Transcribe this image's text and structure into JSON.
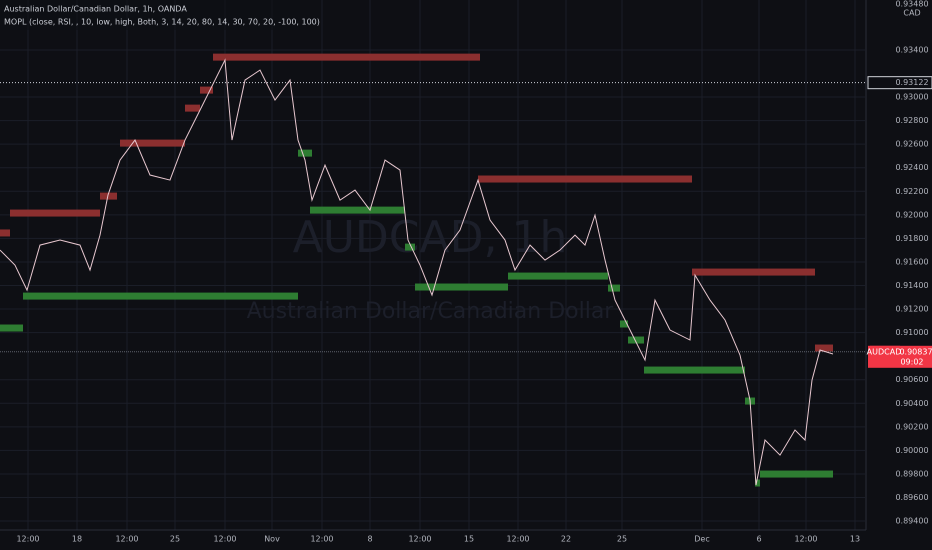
{
  "chart_data": {
    "type": "line",
    "title": "Australian Dollar/Canadian Dollar, 1h, OANDA",
    "subtitle": "MOPL (close, RSI, , 10, low, high, Both, 3, 14, 20, 80, 14, 30, 70, 20, -100, 100)",
    "watermark": "AUDCAD, 1h",
    "watermark_subtitle": "Australian Dollar/Canadian Dollar",
    "currency": "CAD",
    "axis_top_label": "0.93480",
    "xlim": [
      0,
      865
    ],
    "ylim": [
      0.89324,
      0.93824
    ],
    "grid": true,
    "xticks": [
      {
        "value": 28,
        "label": "12:00"
      },
      {
        "value": 77,
        "label": "18"
      },
      {
        "value": 127,
        "label": "12:00"
      },
      {
        "value": 175,
        "label": "25"
      },
      {
        "value": 225,
        "label": "12:00"
      },
      {
        "value": 272,
        "label": "Nov"
      },
      {
        "value": 322,
        "label": "12:00"
      },
      {
        "value": 370,
        "label": "8"
      },
      {
        "value": 420,
        "label": "12:00"
      },
      {
        "value": 469,
        "label": "15"
      },
      {
        "value": 518,
        "label": "12:00"
      },
      {
        "value": 566,
        "label": "22"
      },
      {
        "value": 622,
        "label": "25"
      },
      {
        "value": 702,
        "label": "Dec"
      },
      {
        "value": 759,
        "label": "6"
      },
      {
        "value": 806,
        "label": "12:00"
      },
      {
        "value": 855,
        "label": "13"
      }
    ],
    "yticks": [
      {
        "value": 0.894,
        "label": "0.89400"
      },
      {
        "value": 0.896,
        "label": "0.89600"
      },
      {
        "value": 0.898,
        "label": "0.89800"
      },
      {
        "value": 0.9,
        "label": "0.90000"
      },
      {
        "value": 0.902,
        "label": "0.90200"
      },
      {
        "value": 0.904,
        "label": "0.90400"
      },
      {
        "value": 0.906,
        "label": "0.90600"
      },
      {
        "value": 0.91,
        "label": "0.91000"
      },
      {
        "value": 0.912,
        "label": "0.91200"
      },
      {
        "value": 0.914,
        "label": "0.91400"
      },
      {
        "value": 0.916,
        "label": "0.91600"
      },
      {
        "value": 0.918,
        "label": "0.91800"
      },
      {
        "value": 0.92,
        "label": "0.92000"
      },
      {
        "value": 0.922,
        "label": "0.92200"
      },
      {
        "value": 0.924,
        "label": "0.92400"
      },
      {
        "value": 0.926,
        "label": "0.92600"
      },
      {
        "value": 0.928,
        "label": "0.92800"
      },
      {
        "value": 0.93,
        "label": "0.93000"
      },
      {
        "value": 0.934,
        "label": "0.93400"
      }
    ],
    "series": [
      {
        "color": "#e8c8d0",
        "x": [
          0,
          15,
          27,
          40,
          60,
          80,
          90,
          100,
          108,
          120,
          135,
          150,
          170,
          185,
          200,
          215,
          225,
          232,
          245,
          260,
          275,
          290,
          298,
          305,
          312,
          325,
          340,
          355,
          370,
          385,
          400,
          408,
          420,
          432,
          445,
          460,
          478,
          490,
          505,
          515,
          530,
          545,
          560,
          575,
          585,
          595,
          605,
          615,
          630,
          645,
          655,
          670,
          690,
          695,
          710,
          725,
          740,
          750,
          756,
          765,
          780,
          795,
          805,
          812,
          820,
          833
        ],
        "values": [
          0.91701,
          0.91573,
          0.91361,
          0.91743,
          0.91786,
          0.91743,
          0.91531,
          0.91828,
          0.92168,
          0.92465,
          0.92635,
          0.92338,
          0.92295,
          0.92635,
          0.92889,
          0.93144,
          0.93314,
          0.92635,
          0.93144,
          0.93229,
          0.92974,
          0.93144,
          0.92635,
          0.92465,
          0.92125,
          0.92422,
          0.92125,
          0.9221,
          0.9204,
          0.92465,
          0.9238,
          0.91786,
          0.91573,
          0.91319,
          0.91701,
          0.91871,
          0.92295,
          0.91956,
          0.91786,
          0.91531,
          0.91743,
          0.91616,
          0.91701,
          0.91828,
          0.91743,
          0.91998,
          0.91616,
          0.91276,
          0.91022,
          0.90767,
          0.91276,
          0.91022,
          0.90937,
          0.91488,
          0.91276,
          0.91107,
          0.90809,
          0.90427,
          0.89706,
          0.90088,
          0.8996,
          0.90173,
          0.90088,
          0.90597,
          0.90852,
          0.90818
        ]
      }
    ],
    "levels": [
      {
        "color": "#8b2f2f",
        "x_start": [
          0,
          10,
          100,
          120,
          185,
          200,
          213,
          478,
          692,
          815
        ],
        "x_end": [
          10,
          100,
          117,
          185,
          200,
          213,
          480,
          692,
          815,
          833
        ],
        "values": [
          0.91846,
          0.92015,
          0.92159,
          0.92609,
          0.92906,
          0.93059,
          0.93339,
          0.92304,
          0.91514,
          0.90869
        ]
      },
      {
        "color": "#2e7d32",
        "x_start": [
          0,
          23,
          298,
          310,
          405,
          415,
          508,
          608,
          620,
          628,
          644,
          745,
          755,
          760
        ],
        "x_end": [
          23,
          298,
          312,
          405,
          415,
          508,
          608,
          620,
          628,
          644,
          745,
          755,
          760,
          833
        ],
        "values": [
          0.91039,
          0.9131,
          0.92524,
          0.9204,
          0.91726,
          0.91387,
          0.9148,
          0.91378,
          0.91073,
          0.90937,
          0.90682,
          0.90419,
          0.89723,
          0.89799
        ]
      }
    ],
    "high_line": {
      "value": 0.93122,
      "label": "0.93122"
    },
    "last_price": {
      "value": 0.90837,
      "symbol": "AUDCAD",
      "label": "0.90837",
      "countdown": "09:02",
      "color": "#f23645"
    }
  }
}
